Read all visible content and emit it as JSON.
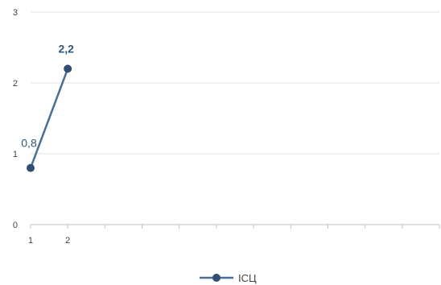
{
  "chart_data": {
    "type": "line",
    "x": [
      1,
      2
    ],
    "x_ticks": [
      "1",
      "2"
    ],
    "series": [
      {
        "name": "ІСЦ",
        "values": [
          0.8,
          2.2
        ],
        "data_labels": [
          "0,8",
          "2,2"
        ],
        "bold_labels": [
          false,
          true
        ]
      }
    ],
    "y_ticks": [
      "0",
      "1",
      "2",
      "3"
    ],
    "ylim": [
      0,
      3
    ],
    "x_slots": 11,
    "grid": true,
    "legend_position": "bottom",
    "colors": {
      "line": "#4a6f94",
      "marker": "#2f4f73",
      "grid": "#e2e2e2",
      "axis": "#bfbfbf"
    }
  }
}
